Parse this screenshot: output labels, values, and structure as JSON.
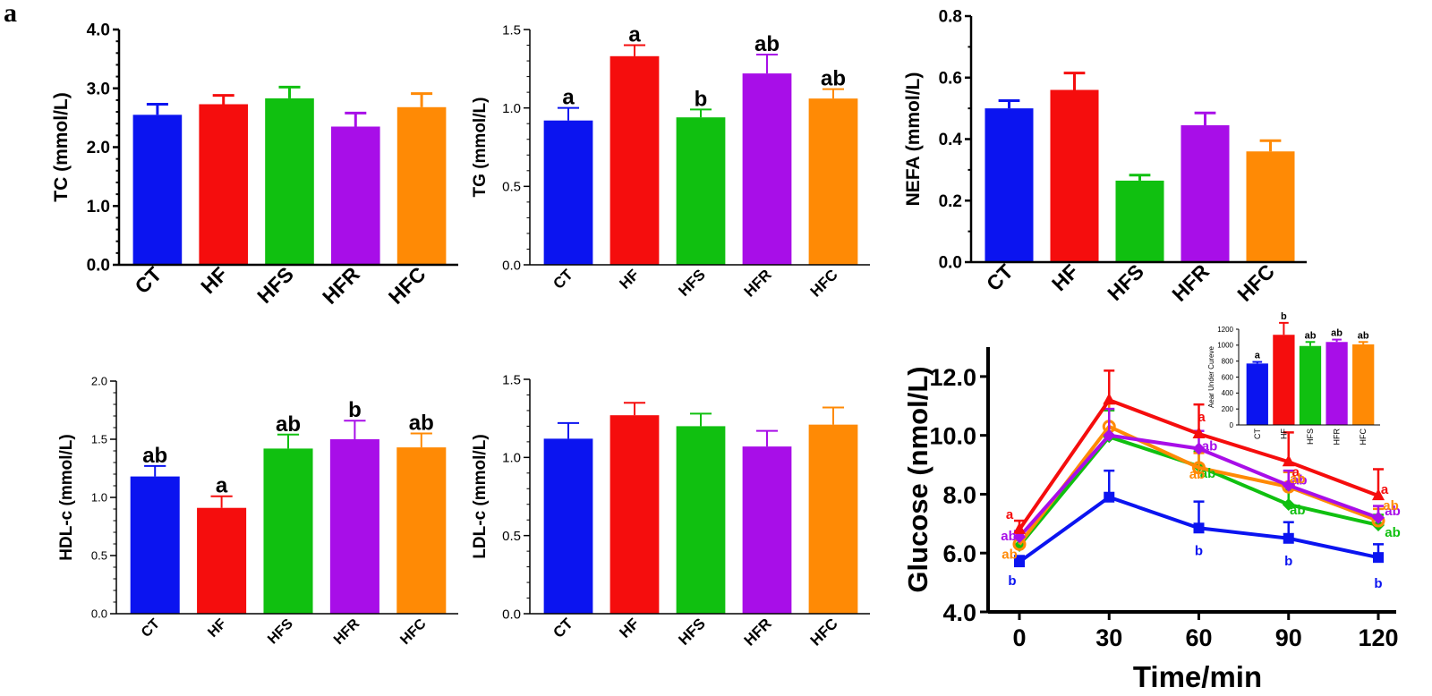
{
  "panel_label": "a",
  "colors": {
    "CT": "#0b14f0",
    "HF": "#f50d0d",
    "HFS": "#10c010",
    "HFR": "#a80ee8",
    "HFC": "#ff8a05",
    "axis": "#000000"
  },
  "chart_data": [
    {
      "id": "tc",
      "type": "bar",
      "title": "",
      "ylabel": "TC (mmol/L)",
      "xlabel": "",
      "ylim": [
        0,
        4
      ],
      "yticks": [
        0,
        1,
        2,
        3,
        4
      ],
      "ytick_labels": [
        "0.0",
        "1.0",
        "2.0",
        "3.0",
        "4.0"
      ],
      "minor_ticks": 4,
      "categories": [
        "CT",
        "HF",
        "HFS",
        "HFR",
        "HFC"
      ],
      "values": [
        2.55,
        2.73,
        2.83,
        2.35,
        2.68
      ],
      "errors": [
        0.18,
        0.15,
        0.19,
        0.23,
        0.23
      ],
      "labels": [
        "",
        "",
        "",
        "",
        ""
      ]
    },
    {
      "id": "tg",
      "type": "bar",
      "title": "",
      "ylabel": "TG (mmol/L)",
      "xlabel": "",
      "ylim": [
        0,
        1.5
      ],
      "yticks": [
        0,
        0.5,
        1.0,
        1.5
      ],
      "ytick_labels": [
        "0.0",
        "0.5",
        "1.0",
        "1.5"
      ],
      "minor_ticks": 4,
      "categories": [
        "CT",
        "HF",
        "HFS",
        "HFR",
        "HFC"
      ],
      "values": [
        0.92,
        1.33,
        0.94,
        1.22,
        1.06
      ],
      "errors": [
        0.08,
        0.07,
        0.05,
        0.12,
        0.06
      ],
      "labels": [
        "a",
        "a",
        "b",
        "ab",
        "ab"
      ]
    },
    {
      "id": "nefa",
      "type": "bar",
      "title": "",
      "ylabel": "NEFA (mmol/L)",
      "xlabel": "",
      "ylim": [
        0,
        0.8
      ],
      "yticks": [
        0,
        0.2,
        0.4,
        0.6,
        0.8
      ],
      "ytick_labels": [
        "0.0",
        "0.2",
        "0.4",
        "0.6",
        "0.8"
      ],
      "minor_ticks": 1,
      "categories": [
        "CT",
        "HF",
        "HFS",
        "HFR",
        "HFC"
      ],
      "values": [
        0.5,
        0.56,
        0.265,
        0.445,
        0.36
      ],
      "errors": [
        0.025,
        0.055,
        0.018,
        0.04,
        0.035
      ],
      "labels": [
        "",
        "",
        "",
        "",
        ""
      ]
    },
    {
      "id": "hdl",
      "type": "bar",
      "title": "",
      "ylabel": "HDL-c (mmol/L)",
      "xlabel": "",
      "ylim": [
        0,
        2
      ],
      "yticks": [
        0,
        0.5,
        1.0,
        1.5,
        2.0
      ],
      "ytick_labels": [
        "0.0",
        "0.5",
        "1.0",
        "1.5",
        "2.0"
      ],
      "minor_ticks": 4,
      "categories": [
        "CT",
        "HF",
        "HFS",
        "HFR",
        "HFC"
      ],
      "values": [
        1.18,
        0.91,
        1.42,
        1.5,
        1.43
      ],
      "errors": [
        0.09,
        0.1,
        0.12,
        0.16,
        0.12
      ],
      "labels": [
        "ab",
        "a",
        "ab",
        "b",
        "ab"
      ]
    },
    {
      "id": "ldl",
      "type": "bar",
      "title": "",
      "ylabel": "LDL-c (mmol/L)",
      "xlabel": "",
      "ylim": [
        0,
        1.5
      ],
      "yticks": [
        0,
        0.5,
        1.0,
        1.5
      ],
      "ytick_labels": [
        "0.0",
        "0.5",
        "1.0",
        "1.5"
      ],
      "minor_ticks": 4,
      "categories": [
        "CT",
        "HF",
        "HFS",
        "HFR",
        "HFC"
      ],
      "values": [
        1.12,
        1.27,
        1.2,
        1.07,
        1.21
      ],
      "errors": [
        0.1,
        0.08,
        0.08,
        0.1,
        0.11
      ],
      "labels": [
        "",
        "",
        "",
        "",
        ""
      ]
    },
    {
      "id": "glucose",
      "type": "line",
      "title": "",
      "ylabel": "Glucose (nmol/L)",
      "xlabel": "Time/min",
      "x": [
        0,
        30,
        60,
        90,
        120
      ],
      "xtick_labels": [
        "0",
        "30",
        "60",
        "90",
        "120"
      ],
      "xlim": [
        -10,
        120
      ],
      "ylim": [
        4,
        13
      ],
      "yticks": [
        4,
        6,
        8,
        10,
        12
      ],
      "ytick_labels": [
        "4.0",
        "6.0",
        "8.0",
        "10.0",
        "12.0"
      ],
      "series": [
        {
          "name": "CT",
          "marker": "square",
          "values": [
            5.7,
            7.9,
            6.85,
            6.5,
            5.85
          ],
          "errors": [
            0.2,
            0.9,
            0.9,
            0.55,
            0.45
          ],
          "labels": [
            "b",
            "",
            "b",
            "b",
            "b"
          ]
        },
        {
          "name": "HF",
          "marker": "triangle",
          "values": [
            6.8,
            11.2,
            10.05,
            9.1,
            7.95
          ],
          "errors": [
            0.3,
            1.0,
            1.0,
            1.0,
            0.9
          ],
          "labels": [
            "a",
            "",
            "a",
            "a",
            "a"
          ]
        },
        {
          "name": "HFS",
          "marker": "diamond",
          "values": [
            6.25,
            9.95,
            8.95,
            7.65,
            6.95
          ],
          "errors": [
            0.2,
            0.9,
            0.5,
            0.5,
            0.35
          ],
          "labels": [
            "",
            "",
            "ab",
            "ab",
            "ab"
          ]
        },
        {
          "name": "HFR",
          "marker": "diamond",
          "values": [
            6.55,
            10.0,
            9.55,
            8.3,
            7.2
          ],
          "errors": [
            0.2,
            0.9,
            0.6,
            0.5,
            0.4
          ],
          "labels": [
            "ab",
            "",
            "ab",
            "ab",
            "ab"
          ]
        },
        {
          "name": "HFC",
          "marker": "circle",
          "values": [
            6.3,
            10.3,
            8.9,
            8.25,
            7.1
          ],
          "errors": [
            0.2,
            0.8,
            0.5,
            0.5,
            0.4
          ],
          "labels": [
            "ab",
            "",
            "ab",
            "ab",
            "ab"
          ]
        }
      ]
    },
    {
      "id": "auc",
      "type": "bar",
      "title": "",
      "ylabel": "Aear Under Cureve",
      "xlabel": "",
      "ylim": [
        0,
        1200
      ],
      "yticks": [
        0,
        200,
        400,
        600,
        800,
        1000,
        1200
      ],
      "ytick_labels": [
        "0",
        "200",
        "400",
        "600",
        "800",
        "1000",
        "1200"
      ],
      "minor_ticks": 0,
      "categories": [
        "CT",
        "HF",
        "HFS",
        "HFR",
        "HFC"
      ],
      "values": [
        770,
        1130,
        990,
        1040,
        1010
      ],
      "errors": [
        20,
        150,
        50,
        30,
        30
      ],
      "labels": [
        "a",
        "b",
        "ab",
        "ab",
        "ab"
      ]
    }
  ]
}
